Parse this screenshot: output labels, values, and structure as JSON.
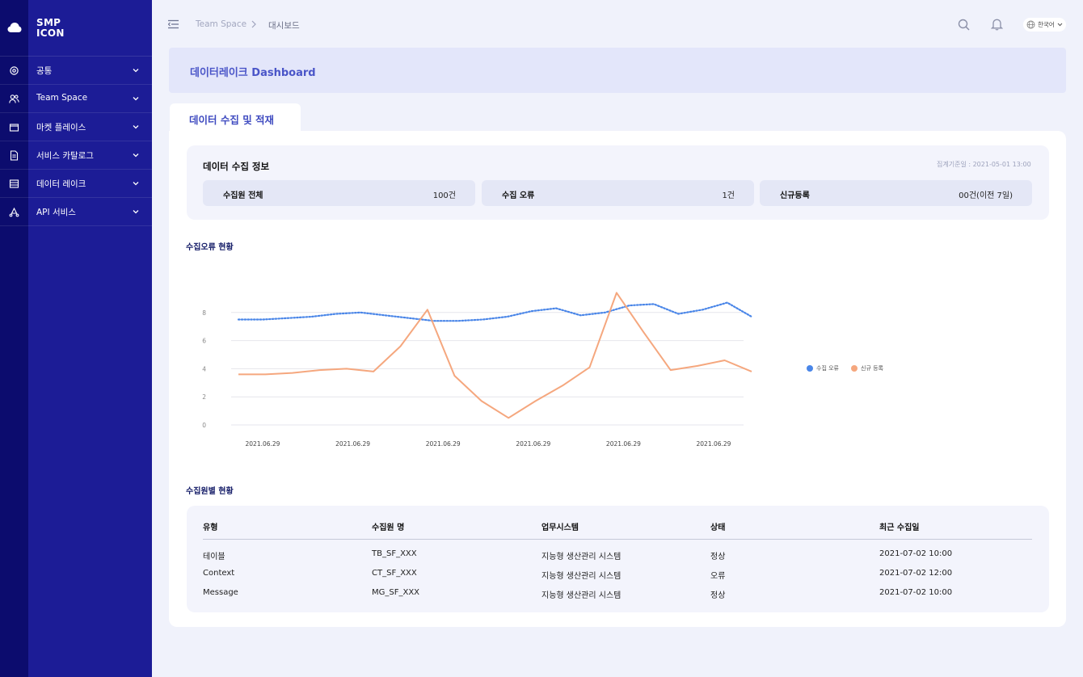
{
  "app": {
    "logo_line1": "SMP",
    "logo_line2": "ICON"
  },
  "sidebar": {
    "items": [
      {
        "label": "공통",
        "icon": "gear-icon"
      },
      {
        "label": "Team Space",
        "icon": "users-icon"
      },
      {
        "label": "마켓 플레이스",
        "icon": "folder-icon"
      },
      {
        "label": "서비스 카탈로그",
        "icon": "document-icon"
      },
      {
        "label": "데이터 레이크",
        "icon": "database-icon"
      },
      {
        "label": "API 서비스",
        "icon": "api-icon"
      }
    ]
  },
  "breadcrumb": {
    "root": "Team Space",
    "current": "대시보드"
  },
  "header": {
    "language": "한국어"
  },
  "page": {
    "title": "데이터레이크 Dashboard",
    "tab": "데이터 수집 및 적재"
  },
  "collection_info": {
    "title": "데이터 수집 정보",
    "as_of": "집계기준일 : 2021-05-01 13:00",
    "stats": [
      {
        "label": "수집원 전체",
        "value": "100건"
      },
      {
        "label": "수집 오류",
        "value": "1건"
      },
      {
        "label": "신규등록",
        "value": "00건(이전 7일)"
      }
    ]
  },
  "chart_section": {
    "title": "수집오류 현황"
  },
  "chart_data": {
    "type": "line",
    "x_tick_labels": [
      "2021.06.29",
      "2021.06.29",
      "2021.06.29",
      "2021.06.29",
      "2021.06.29",
      "2021.06.29"
    ],
    "y_ticks": [
      0,
      2,
      4,
      6,
      8
    ],
    "ylim": [
      0,
      10
    ],
    "grid": true,
    "legend_position": "right",
    "series": [
      {
        "name": "수집 오류",
        "color": "#4a86e8",
        "style": "dotted",
        "values": [
          7.5,
          7.5,
          7.6,
          7.7,
          7.9,
          8.0,
          7.8,
          7.6,
          7.4,
          7.4,
          7.5,
          7.7,
          8.1,
          8.3,
          7.8,
          8.0,
          8.5,
          8.6,
          7.9,
          8.2,
          8.7,
          7.7
        ]
      },
      {
        "name": "신규 등록",
        "color": "#f5a77e",
        "style": "solid",
        "values": [
          3.6,
          3.6,
          3.7,
          3.9,
          4.0,
          3.8,
          5.6,
          8.2,
          3.5,
          1.7,
          0.5,
          1.7,
          2.8,
          4.1,
          9.4,
          6.6,
          3.9,
          4.2,
          4.6,
          3.8
        ]
      }
    ]
  },
  "table_section": {
    "title": "수집원별 현황",
    "headers": [
      "유형",
      "수집원 명",
      "업무시스템",
      "상태",
      "최근 수집일"
    ],
    "rows": [
      [
        "테이블",
        "TB_SF_XXX",
        "지능형 생산관리 시스템",
        "정상",
        "2021-07-02 10:00"
      ],
      [
        "Context",
        "CT_SF_XXX",
        "지능형 생산관리 시스템",
        "오류",
        "2021-07-02 12:00"
      ],
      [
        "Message",
        "MG_SF_XXX",
        "지능형 생산관리 시스템",
        "정상",
        "2021-07-02 10:00"
      ]
    ]
  }
}
